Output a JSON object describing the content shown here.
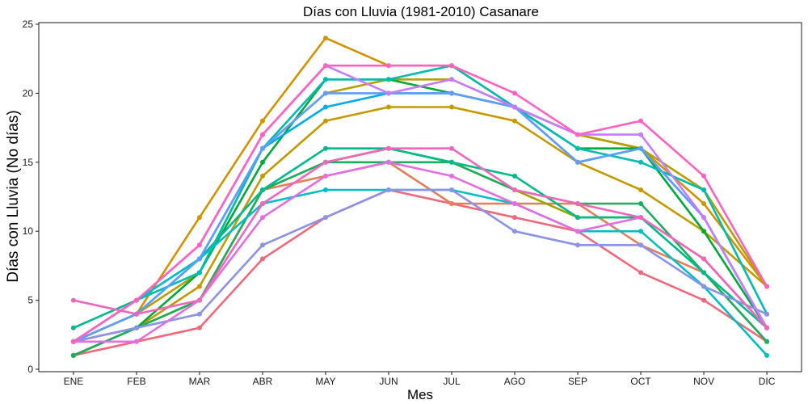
{
  "chart_data": {
    "type": "line",
    "title": "Días con Lluvia (1981-2010)  Casanare",
    "xlabel": "Mes",
    "ylabel": "Días con Lluvia (No días)",
    "categories": [
      "ENE",
      "FEB",
      "MAR",
      "ABR",
      "MAY",
      "JUN",
      "JUL",
      "AGO",
      "SEP",
      "OCT",
      "NOV",
      "DIC"
    ],
    "y_ticks": [
      "0",
      "5",
      "10",
      "15",
      "20",
      "25"
    ],
    "ylim": [
      0,
      25
    ],
    "grid": false,
    "legend": "none",
    "series": [
      {
        "color": "#F0697A",
        "values": [
          1,
          2,
          3,
          8,
          11,
          13,
          12,
          11,
          10,
          7,
          5,
          2
        ]
      },
      {
        "color": "#E47E58",
        "values": [
          2,
          3,
          5,
          13,
          14,
          15,
          12,
          12,
          12,
          9,
          7,
          2
        ]
      },
      {
        "color": "#C49A00",
        "values": [
          2,
          3,
          6,
          14,
          18,
          19,
          19,
          18,
          15,
          13,
          10,
          6
        ]
      },
      {
        "color": "#D39200",
        "values": [
          2,
          4,
          11,
          18,
          24,
          22,
          22,
          19,
          17,
          16,
          12,
          6
        ]
      },
      {
        "color": "#B79F00",
        "values": [
          2,
          4,
          7,
          16,
          20,
          21,
          21,
          19,
          17,
          16,
          13,
          6
        ]
      },
      {
        "color": "#99A800",
        "values": [
          1,
          3,
          5,
          13,
          15,
          16,
          15,
          13,
          11,
          11,
          8,
          3
        ]
      },
      {
        "color": "#00A938",
        "values": [
          1,
          3,
          7,
          15,
          21,
          21,
          20,
          19,
          16,
          16,
          10,
          3
        ]
      },
      {
        "color": "#1DAE5D",
        "values": [
          1,
          3,
          5,
          13,
          15,
          15,
          15,
          13,
          12,
          12,
          7,
          2
        ]
      },
      {
        "color": "#00BA8B",
        "values": [
          3,
          5,
          8,
          13,
          16,
          16,
          15,
          14,
          11,
          11,
          7,
          3
        ]
      },
      {
        "color": "#00BCB1",
        "values": [
          2,
          5,
          7,
          16,
          21,
          21,
          22,
          19,
          16,
          15,
          13,
          4
        ]
      },
      {
        "color": "#00BFC4",
        "values": [
          2,
          5,
          8,
          12,
          13,
          13,
          13,
          12,
          10,
          10,
          6,
          1
        ]
      },
      {
        "color": "#00ABE8",
        "values": [
          2,
          4,
          8,
          16,
          19,
          20,
          20,
          19,
          15,
          16,
          11,
          3
        ]
      },
      {
        "color": "#619CFF",
        "values": [
          2,
          4,
          8,
          16,
          20,
          20,
          20,
          19,
          15,
          16,
          11,
          3
        ]
      },
      {
        "color": "#8A94E6",
        "values": [
          2,
          3,
          4,
          9,
          11,
          13,
          13,
          10,
          9,
          9,
          6,
          4
        ]
      },
      {
        "color": "#C77CFF",
        "values": [
          2,
          5,
          9,
          17,
          22,
          20,
          21,
          19,
          17,
          17,
          11,
          3
        ]
      },
      {
        "color": "#E36EE0",
        "values": [
          2,
          2,
          5,
          11,
          14,
          15,
          14,
          12,
          10,
          11,
          8,
          3
        ]
      },
      {
        "color": "#F066BB",
        "values": [
          5,
          4,
          5,
          12,
          15,
          16,
          16,
          13,
          12,
          11,
          8,
          3
        ]
      },
      {
        "color": "#FF61C3",
        "values": [
          2,
          5,
          9,
          17,
          22,
          22,
          22,
          20,
          17,
          18,
          14,
          6
        ]
      }
    ]
  }
}
